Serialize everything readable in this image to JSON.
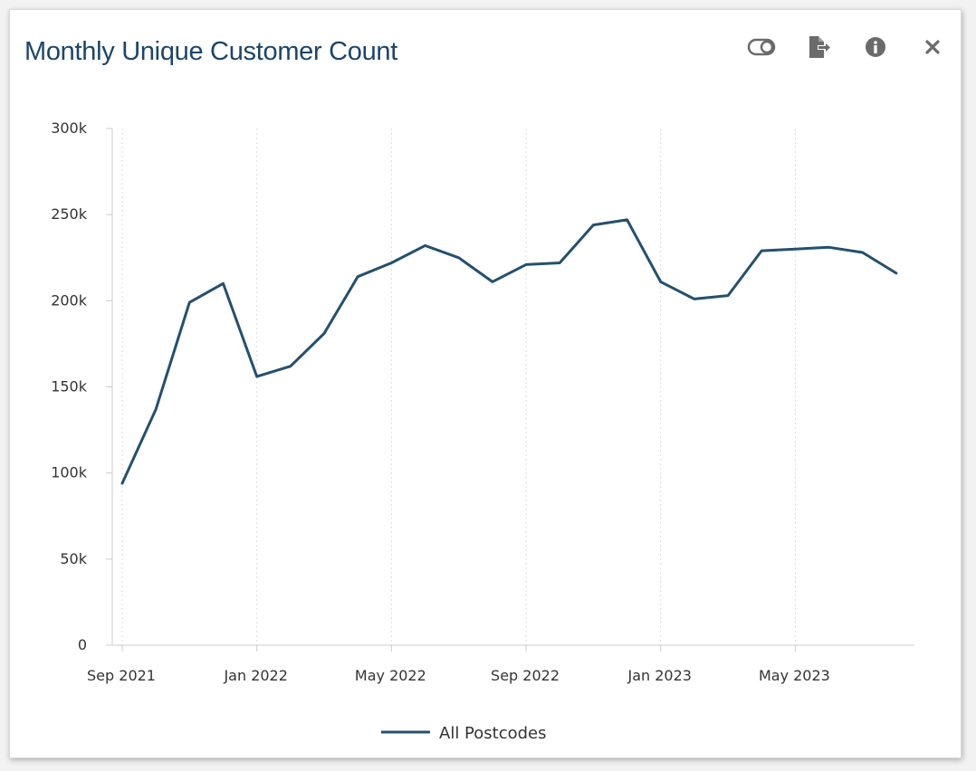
{
  "title": "Monthly Unique Customer Count",
  "toolbar": {
    "icons": [
      "toggle-icon",
      "export-icon",
      "info-icon",
      "close-icon"
    ],
    "icon_color": "#6b6b6b"
  },
  "colors": {
    "title": "#1c4568",
    "series": "#24506d",
    "axis": "#cccccc",
    "grid": "#dddddd",
    "text": "#333333"
  },
  "chart_data": {
    "type": "line",
    "title": "Monthly Unique Customer Count",
    "x_ticks": [
      "Sep 2021",
      "Jan 2022",
      "May 2022",
      "Sep 2022",
      "Jan 2023",
      "May 2023"
    ],
    "y_ticks": [
      "0",
      "50k",
      "100k",
      "150k",
      "200k",
      "250k",
      "300k"
    ],
    "ylim": [
      0,
      300000
    ],
    "grid": "vertical dotted",
    "legend_position": "bottom-center",
    "x": [
      "2021-09",
      "2021-10",
      "2021-11",
      "2021-12",
      "2022-01",
      "2022-02",
      "2022-03",
      "2022-04",
      "2022-05",
      "2022-06",
      "2022-07",
      "2022-08",
      "2022-09",
      "2022-10",
      "2022-11",
      "2022-12",
      "2023-01",
      "2023-02",
      "2023-03",
      "2023-04",
      "2023-05",
      "2023-06",
      "2023-07",
      "2023-08"
    ],
    "series": [
      {
        "name": "All Postcodes",
        "values": [
          94000,
          137000,
          199000,
          210000,
          156000,
          162000,
          181000,
          214000,
          222000,
          232000,
          225000,
          211000,
          221000,
          222000,
          244000,
          247000,
          211000,
          201000,
          203000,
          229000,
          230000,
          231000,
          228000,
          216000
        ]
      }
    ]
  }
}
